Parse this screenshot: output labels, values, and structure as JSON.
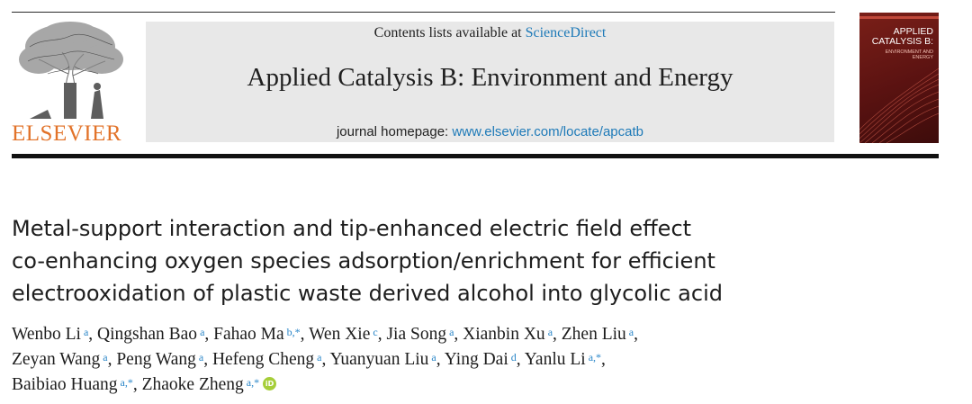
{
  "header": {
    "publisher": "ELSEVIER",
    "contents_prefix": "Contents lists available at ",
    "contents_link": "ScienceDirect",
    "journal_title": "Applied Catalysis B: Environment and Energy",
    "homepage_prefix": "journal homepage: ",
    "homepage_link": "www.elsevier.com/locate/apcatb",
    "cover_title_1": "APPLIED",
    "cover_title_2": "CATALYSIS B:",
    "cover_subtitle": "ENVIRONMENT AND ENERGY"
  },
  "article": {
    "title_lines": [
      "Metal-support interaction and tip-enhanced electric field effect",
      "co-enhancing oxygen species adsorption/enrichment for efficient",
      "electrooxidation of plastic waste derived alcohol into glycolic acid"
    ],
    "authors": [
      {
        "name": "Wenbo Li",
        "aff": "a"
      },
      {
        "name": "Qingshan Bao",
        "aff": "a"
      },
      {
        "name": "Fahao Ma",
        "aff": "b,*"
      },
      {
        "name": "Wen Xie",
        "aff": "c"
      },
      {
        "name": "Jia Song",
        "aff": "a"
      },
      {
        "name": "Xianbin Xu",
        "aff": "a"
      },
      {
        "name": "Zhen Liu",
        "aff": "a"
      },
      {
        "name": "Zeyan Wang",
        "aff": "a"
      },
      {
        "name": "Peng Wang",
        "aff": "a"
      },
      {
        "name": "Hefeng Cheng",
        "aff": "a"
      },
      {
        "name": "Yuanyuan Liu",
        "aff": "a"
      },
      {
        "name": "Ying Dai",
        "aff": "d"
      },
      {
        "name": "Yanlu Li",
        "aff": "a,*"
      },
      {
        "name": "Baibiao Huang",
        "aff": "a,*"
      },
      {
        "name": "Zhaoke Zheng",
        "aff": "a,*"
      }
    ],
    "orcid_label": "iD"
  },
  "colors": {
    "publisher_orange": "#e2732a",
    "link_blue": "#1e7ab8",
    "banner_gray": "#e8e8e8",
    "cover_red": "#6a1714",
    "orcid_green": "#a6ce39"
  }
}
